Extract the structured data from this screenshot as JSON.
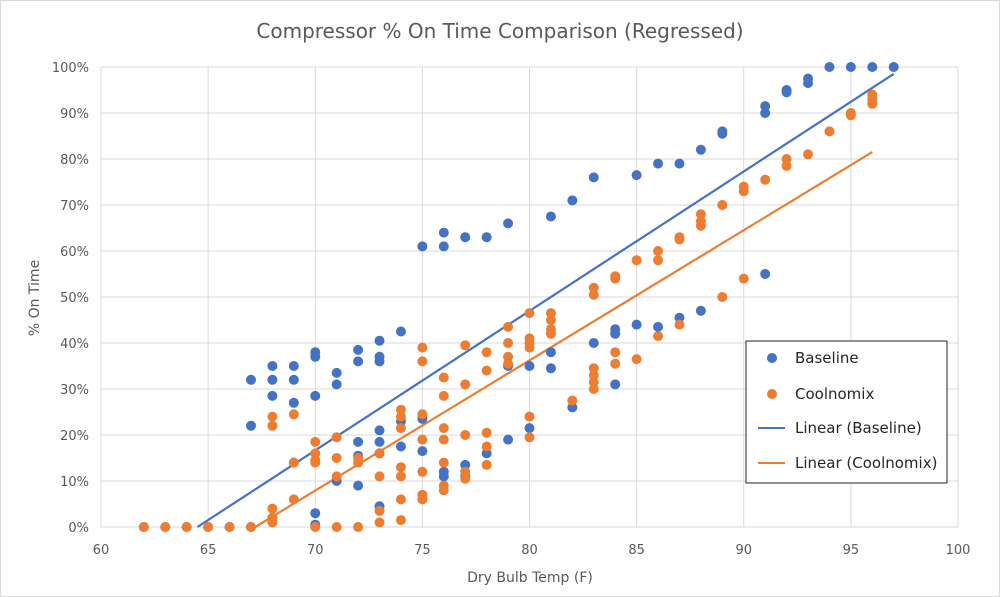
{
  "chart_data": {
    "type": "scatter",
    "title": "Compressor % On Time Comparison (Regressed)",
    "xlabel": "Dry Bulb Temp (F)",
    "ylabel": "% On Time",
    "xlim": [
      60,
      100
    ],
    "ylim": [
      0,
      100
    ],
    "x_ticks": [
      60,
      65,
      70,
      75,
      80,
      85,
      90,
      95,
      100
    ],
    "y_ticks": [
      0,
      10,
      20,
      30,
      40,
      50,
      60,
      70,
      80,
      90,
      100
    ],
    "x_tick_labels": [
      "60",
      "65",
      "70",
      "75",
      "80",
      "85",
      "90",
      "95",
      "100"
    ],
    "y_tick_labels": [
      "0%",
      "10%",
      "20%",
      "30%",
      "40%",
      "50%",
      "60%",
      "70%",
      "80%",
      "90%",
      "100%"
    ],
    "grid": "vertical and horizontal major gridlines",
    "legend_position": "right",
    "series": [
      {
        "name": "Baseline",
        "color": "#4472c4",
        "marker": "circle",
        "points": [
          [
            62,
            0
          ],
          [
            63,
            0
          ],
          [
            64,
            0
          ],
          [
            65,
            0
          ],
          [
            66,
            0
          ],
          [
            67,
            0
          ],
          [
            67,
            32
          ],
          [
            67,
            22
          ],
          [
            68,
            35
          ],
          [
            68,
            32
          ],
          [
            68,
            28.5
          ],
          [
            68,
            2
          ],
          [
            69,
            35
          ],
          [
            69,
            32
          ],
          [
            69,
            27
          ],
          [
            69,
            14
          ],
          [
            70,
            38
          ],
          [
            70,
            37
          ],
          [
            70,
            28.5
          ],
          [
            70,
            3
          ],
          [
            70,
            0.5
          ],
          [
            71,
            33.5
          ],
          [
            71,
            31
          ],
          [
            71,
            10
          ],
          [
            72,
            38.5
          ],
          [
            72,
            36
          ],
          [
            72,
            18.5
          ],
          [
            72,
            15.5
          ],
          [
            72,
            9
          ],
          [
            73,
            40.5
          ],
          [
            73,
            37
          ],
          [
            73,
            36
          ],
          [
            73,
            21
          ],
          [
            73,
            18.5
          ],
          [
            73,
            16
          ],
          [
            73,
            4.5
          ],
          [
            74,
            42.5
          ],
          [
            74,
            23
          ],
          [
            74,
            17.5
          ],
          [
            75,
            61
          ],
          [
            75,
            23.5
          ],
          [
            75,
            16.5
          ],
          [
            76,
            64
          ],
          [
            76,
            61
          ],
          [
            76,
            12
          ],
          [
            76,
            11
          ],
          [
            77,
            63
          ],
          [
            77,
            13.5
          ],
          [
            77,
            11
          ],
          [
            78,
            63
          ],
          [
            78,
            16
          ],
          [
            79,
            66
          ],
          [
            79,
            35
          ],
          [
            79,
            19
          ],
          [
            80,
            35
          ],
          [
            80,
            21.5
          ],
          [
            81,
            67.5
          ],
          [
            81,
            38
          ],
          [
            81,
            34.5
          ],
          [
            82,
            71
          ],
          [
            82,
            26
          ],
          [
            83,
            76
          ],
          [
            83,
            40
          ],
          [
            84,
            43
          ],
          [
            84,
            42
          ],
          [
            84,
            31
          ],
          [
            85,
            76.5
          ],
          [
            85,
            44
          ],
          [
            86,
            79
          ],
          [
            86,
            43.5
          ],
          [
            87,
            79
          ],
          [
            87,
            45.5
          ],
          [
            88,
            82
          ],
          [
            88,
            47
          ],
          [
            89,
            86
          ],
          [
            89,
            85.5
          ],
          [
            91,
            91.5
          ],
          [
            91,
            90
          ],
          [
            91,
            55
          ],
          [
            92,
            95
          ],
          [
            92,
            94.5
          ],
          [
            93,
            97.5
          ],
          [
            93,
            96.5
          ],
          [
            94,
            100
          ],
          [
            95,
            100
          ],
          [
            96,
            100
          ],
          [
            97,
            100
          ]
        ]
      },
      {
        "name": "Coolnomix",
        "color": "#ed7d31",
        "marker": "circle",
        "points": [
          [
            62,
            0
          ],
          [
            63,
            0
          ],
          [
            64,
            0
          ],
          [
            65,
            0
          ],
          [
            66,
            0
          ],
          [
            67,
            0
          ],
          [
            68,
            24
          ],
          [
            68,
            22
          ],
          [
            68,
            4
          ],
          [
            68,
            2
          ],
          [
            68,
            1
          ],
          [
            69,
            24.5
          ],
          [
            69,
            14
          ],
          [
            69,
            6
          ],
          [
            70,
            18.5
          ],
          [
            70,
            16
          ],
          [
            70,
            14.5
          ],
          [
            70,
            14
          ],
          [
            70,
            0
          ],
          [
            71,
            19.5
          ],
          [
            71,
            15
          ],
          [
            71,
            11
          ],
          [
            71,
            0
          ],
          [
            72,
            15
          ],
          [
            72,
            14
          ],
          [
            72,
            0
          ],
          [
            73,
            16
          ],
          [
            73,
            11
          ],
          [
            73,
            3.5
          ],
          [
            73,
            1
          ],
          [
            74,
            25.5
          ],
          [
            74,
            24
          ],
          [
            74,
            21.5
          ],
          [
            74,
            13
          ],
          [
            74,
            11
          ],
          [
            74,
            6
          ],
          [
            74,
            1.5
          ],
          [
            75,
            39
          ],
          [
            75,
            36
          ],
          [
            75,
            24.5
          ],
          [
            75,
            19
          ],
          [
            75,
            12
          ],
          [
            75,
            7
          ],
          [
            75,
            6
          ],
          [
            76,
            32.5
          ],
          [
            76,
            28.5
          ],
          [
            76,
            21.5
          ],
          [
            76,
            19
          ],
          [
            76,
            14
          ],
          [
            76,
            9
          ],
          [
            76,
            8
          ],
          [
            77,
            39.5
          ],
          [
            77,
            31
          ],
          [
            77,
            20
          ],
          [
            77,
            12
          ],
          [
            77,
            10.5
          ],
          [
            78,
            38
          ],
          [
            78,
            34
          ],
          [
            78,
            20.5
          ],
          [
            78,
            17.5
          ],
          [
            78,
            13.5
          ],
          [
            79,
            43.5
          ],
          [
            79,
            40
          ],
          [
            79,
            37
          ],
          [
            79,
            35.5
          ],
          [
            80,
            46.5
          ],
          [
            80,
            41
          ],
          [
            80,
            40
          ],
          [
            80,
            39
          ],
          [
            80,
            24
          ],
          [
            80,
            19.5
          ],
          [
            81,
            46.5
          ],
          [
            81,
            45
          ],
          [
            81,
            43
          ],
          [
            81,
            42
          ],
          [
            82,
            27.5
          ],
          [
            83,
            52
          ],
          [
            83,
            50.5
          ],
          [
            83,
            34.5
          ],
          [
            83,
            33
          ],
          [
            83,
            31.5
          ],
          [
            83,
            30
          ],
          [
            84,
            54.5
          ],
          [
            84,
            54
          ],
          [
            84,
            38
          ],
          [
            84,
            35.5
          ],
          [
            85,
            58
          ],
          [
            85,
            36.5
          ],
          [
            86,
            60
          ],
          [
            86,
            58
          ],
          [
            86,
            41.5
          ],
          [
            87,
            63
          ],
          [
            87,
            62.5
          ],
          [
            87,
            44
          ],
          [
            88,
            68
          ],
          [
            88,
            66.5
          ],
          [
            88,
            65.5
          ],
          [
            89,
            70
          ],
          [
            89,
            50
          ],
          [
            90,
            74
          ],
          [
            90,
            73
          ],
          [
            90,
            54
          ],
          [
            91,
            75.5
          ],
          [
            92,
            80
          ],
          [
            92,
            78.5
          ],
          [
            93,
            81
          ],
          [
            94,
            86
          ],
          [
            95,
            90
          ],
          [
            95,
            89.5
          ],
          [
            96,
            94
          ],
          [
            96,
            93
          ],
          [
            96,
            92
          ]
        ]
      },
      {
        "name": "Linear (Baseline)",
        "color": "#4472c4",
        "type": "line",
        "points": [
          [
            64.5,
            0
          ],
          [
            97,
            98.5
          ]
        ]
      },
      {
        "name": "Linear (Coolnomix)",
        "color": "#ed7d31",
        "type": "line",
        "points": [
          [
            67.2,
            0
          ],
          [
            96,
            81.5
          ]
        ]
      }
    ]
  }
}
